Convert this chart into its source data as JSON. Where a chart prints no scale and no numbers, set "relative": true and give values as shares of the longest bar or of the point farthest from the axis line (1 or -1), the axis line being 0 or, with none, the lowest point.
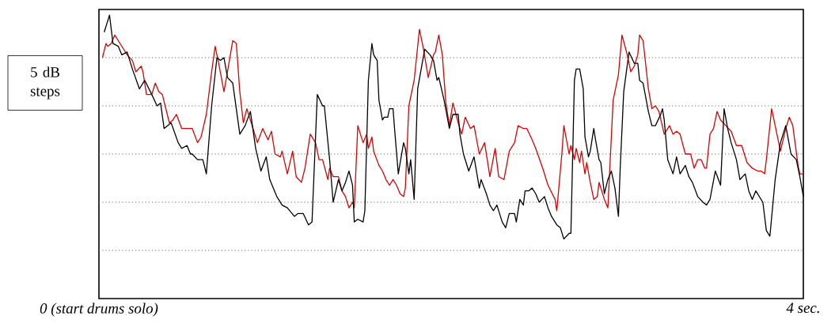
{
  "chart_data": {
    "type": "line",
    "relative": true,
    "ylabel": "5 dB steps",
    "xlim": [
      0,
      4
    ],
    "xticks": [
      {
        "value": 0,
        "label": "0 (start drums solo)"
      },
      {
        "value": 4,
        "label": "4 sec."
      }
    ],
    "ref_lines": [
      {
        "axis": "y",
        "value": 0.17,
        "color": "#666666",
        "line_style": "dotted"
      },
      {
        "axis": "y",
        "value": 0.34,
        "color": "#666666",
        "line_style": "dotted"
      },
      {
        "axis": "y",
        "value": 0.51,
        "color": "#666666",
        "line_style": "dotted"
      },
      {
        "axis": "y",
        "value": 0.68,
        "color": "#666666",
        "line_style": "dotted"
      },
      {
        "axis": "y",
        "value": 0.85,
        "color": "#666666",
        "line_style": "dotted"
      }
    ],
    "series": [
      {
        "color": "#dd0000",
        "x": [
          0.02,
          0.04,
          0.05,
          0.07,
          0.09,
          0.11,
          0.14,
          0.16,
          0.19,
          0.21,
          0.24,
          0.25,
          0.27,
          0.3,
          0.32,
          0.34,
          0.36,
          0.38,
          0.4,
          0.42,
          0.44,
          0.47,
          0.53,
          0.56,
          0.58,
          0.61,
          0.64,
          0.66,
          0.68,
          0.71,
          0.73,
          0.76,
          0.78,
          0.8,
          0.82,
          0.84,
          0.87,
          0.9,
          0.93,
          0.96,
          0.98,
          1.0,
          1.03,
          1.04,
          1.07,
          1.1,
          1.12,
          1.15,
          1.17,
          1.2,
          1.23,
          1.25,
          1.27,
          1.3,
          1.31,
          1.33,
          1.36,
          1.38,
          1.4,
          1.42,
          1.44,
          1.45,
          1.47,
          1.5,
          1.52,
          1.53,
          1.55,
          1.56,
          1.59,
          1.61,
          1.63,
          1.65,
          1.67,
          1.69,
          1.71,
          1.73,
          1.74,
          1.76,
          1.79,
          1.82,
          1.84,
          1.87,
          1.9,
          1.91,
          1.93,
          1.95,
          1.97,
          1.99,
          2.01,
          2.04,
          2.06,
          2.08,
          2.11,
          2.13,
          2.16,
          2.19,
          2.22,
          2.25,
          2.27,
          2.3,
          2.33,
          2.36,
          2.38,
          2.41,
          2.43,
          2.46,
          2.48,
          2.52,
          2.55,
          2.59,
          2.6,
          2.63,
          2.64,
          2.67,
          2.68,
          2.7,
          2.71,
          2.73,
          2.74,
          2.76,
          2.77,
          2.79,
          2.81,
          2.83,
          2.84,
          2.87,
          2.89,
          2.92,
          2.95,
          2.97,
          3.0,
          3.02,
          3.04,
          3.06,
          3.07,
          3.09,
          3.12,
          3.14,
          3.16,
          3.18,
          3.21,
          3.24,
          3.26,
          3.28,
          3.3,
          3.33,
          3.36,
          3.38,
          3.4,
          3.42,
          3.44,
          3.45,
          3.47,
          3.49,
          3.51,
          3.53,
          3.56,
          3.59,
          3.62,
          3.65,
          3.68,
          3.71,
          3.74,
          3.76,
          3.78,
          3.79,
          3.82,
          3.84,
          3.87,
          3.9,
          3.92,
          3.94,
          3.97,
          3.98,
          4.0
        ],
        "values": [
          0.85,
          0.9,
          0.89,
          0.9,
          0.93,
          0.91,
          0.88,
          0.86,
          0.84,
          0.8,
          0.82,
          0.8,
          0.72,
          0.72,
          0.76,
          0.73,
          0.72,
          0.67,
          0.62,
          0.63,
          0.65,
          0.6,
          0.6,
          0.55,
          0.57,
          0.65,
          0.8,
          0.89,
          0.83,
          0.73,
          0.8,
          0.91,
          0.9,
          0.73,
          0.62,
          0.67,
          0.61,
          0.55,
          0.6,
          0.56,
          0.59,
          0.51,
          0.5,
          0.52,
          0.44,
          0.52,
          0.43,
          0.41,
          0.46,
          0.58,
          0.55,
          0.49,
          0.49,
          0.42,
          0.46,
          0.43,
          0.43,
          0.38,
          0.36,
          0.32,
          0.34,
          0.32,
          0.61,
          0.55,
          0.58,
          0.53,
          0.57,
          0.52,
          0.47,
          0.45,
          0.42,
          0.4,
          0.42,
          0.4,
          0.37,
          0.36,
          0.39,
          0.68,
          0.77,
          0.95,
          0.89,
          0.78,
          0.86,
          0.87,
          0.93,
          0.86,
          0.69,
          0.61,
          0.69,
          0.62,
          0.58,
          0.64,
          0.6,
          0.61,
          0.51,
          0.55,
          0.43,
          0.53,
          0.43,
          0.42,
          0.52,
          0.55,
          0.61,
          0.6,
          0.6,
          0.56,
          0.53,
          0.46,
          0.4,
          0.35,
          0.31,
          0.52,
          0.61,
          0.51,
          0.54,
          0.49,
          0.53,
          0.48,
          0.52,
          0.44,
          0.48,
          0.41,
          0.35,
          0.36,
          0.41,
          0.35,
          0.32,
          0.7,
          0.79,
          0.93,
          0.86,
          0.8,
          0.82,
          0.86,
          0.93,
          0.91,
          0.74,
          0.67,
          0.68,
          0.66,
          0.58,
          0.61,
          0.58,
          0.59,
          0.58,
          0.51,
          0.51,
          0.46,
          0.49,
          0.49,
          0.46,
          0.46,
          0.58,
          0.6,
          0.66,
          0.63,
          0.61,
          0.59,
          0.54,
          0.54,
          0.48,
          0.46,
          0.45,
          0.45,
          0.44,
          0.49,
          0.67,
          0.61,
          0.52,
          0.6,
          0.64,
          0.61,
          0.47,
          0.44,
          0.44
        ]
      },
      {
        "color": "#000000",
        "x": [
          0.03,
          0.06,
          0.08,
          0.11,
          0.13,
          0.16,
          0.19,
          0.23,
          0.26,
          0.3,
          0.33,
          0.35,
          0.37,
          0.41,
          0.45,
          0.47,
          0.5,
          0.52,
          0.53,
          0.56,
          0.59,
          0.61,
          0.64,
          0.67,
          0.69,
          0.71,
          0.73,
          0.76,
          0.8,
          0.83,
          0.86,
          0.89,
          0.92,
          0.95,
          0.97,
          1.01,
          1.04,
          1.07,
          1.11,
          1.13,
          1.16,
          1.19,
          1.21,
          1.24,
          1.27,
          1.28,
          1.31,
          1.33,
          1.36,
          1.38,
          1.4,
          1.42,
          1.44,
          1.45,
          1.47,
          1.5,
          1.51,
          1.53,
          1.55,
          1.56,
          1.58,
          1.59,
          1.61,
          1.62,
          1.64,
          1.65,
          1.67,
          1.68,
          1.7,
          1.73,
          1.74,
          1.76,
          1.77,
          1.79,
          1.81,
          1.85,
          1.88,
          1.9,
          1.92,
          1.93,
          1.96,
          1.99,
          2.01,
          2.04,
          2.05,
          2.07,
          2.1,
          2.13,
          2.16,
          2.17,
          2.2,
          2.22,
          2.24,
          2.26,
          2.29,
          2.31,
          2.33,
          2.36,
          2.37,
          2.39,
          2.41,
          2.42,
          2.44,
          2.46,
          2.48,
          2.5,
          2.53,
          2.55,
          2.57,
          2.6,
          2.62,
          2.64,
          2.67,
          2.68,
          2.7,
          2.71,
          2.73,
          2.75,
          2.76,
          2.78,
          2.79,
          2.81,
          2.82,
          2.84,
          2.85,
          2.87,
          2.89,
          2.91,
          2.93,
          2.95,
          2.96,
          2.98,
          3.01,
          3.04,
          3.06,
          3.07,
          3.09,
          3.12,
          3.14,
          3.16,
          3.19,
          3.2,
          3.21,
          3.23,
          3.26,
          3.28,
          3.3,
          3.33,
          3.35,
          3.37,
          3.4,
          3.43,
          3.45,
          3.47,
          3.5,
          3.53,
          3.55,
          3.57,
          3.59,
          3.62,
          3.64,
          3.67,
          3.69,
          3.71,
          3.73,
          3.77,
          3.79,
          3.81,
          3.84,
          3.87,
          3.9,
          3.93,
          3.96,
          3.98,
          4.0
        ],
        "values": [
          0.94,
          1.0,
          0.9,
          0.89,
          0.86,
          0.87,
          0.81,
          0.74,
          0.77,
          0.72,
          0.68,
          0.69,
          0.6,
          0.62,
          0.55,
          0.53,
          0.54,
          0.51,
          0.51,
          0.49,
          0.49,
          0.44,
          0.68,
          0.85,
          0.84,
          0.85,
          0.78,
          0.76,
          0.58,
          0.61,
          0.66,
          0.53,
          0.45,
          0.5,
          0.42,
          0.36,
          0.33,
          0.32,
          0.29,
          0.3,
          0.3,
          0.26,
          0.27,
          0.72,
          0.68,
          0.68,
          0.49,
          0.34,
          0.42,
          0.38,
          0.41,
          0.45,
          0.4,
          0.27,
          0.28,
          0.27,
          0.31,
          0.77,
          0.9,
          0.86,
          0.84,
          0.7,
          0.63,
          0.64,
          0.64,
          0.67,
          0.67,
          0.59,
          0.44,
          0.55,
          0.53,
          0.44,
          0.49,
          0.35,
          0.74,
          0.88,
          0.86,
          0.84,
          0.77,
          0.78,
          0.7,
          0.6,
          0.65,
          0.65,
          0.58,
          0.51,
          0.45,
          0.5,
          0.39,
          0.42,
          0.37,
          0.33,
          0.31,
          0.33,
          0.27,
          0.25,
          0.3,
          0.3,
          0.27,
          0.35,
          0.33,
          0.38,
          0.38,
          0.39,
          0.37,
          0.34,
          0.36,
          0.32,
          0.29,
          0.26,
          0.25,
          0.21,
          0.23,
          0.23,
          0.77,
          0.81,
          0.81,
          0.74,
          0.57,
          0.5,
          0.52,
          0.6,
          0.56,
          0.49,
          0.48,
          0.37,
          0.42,
          0.45,
          0.39,
          0.29,
          0.46,
          0.73,
          0.87,
          0.83,
          0.83,
          0.77,
          0.76,
          0.66,
          0.61,
          0.61,
          0.65,
          0.67,
          0.63,
          0.49,
          0.44,
          0.5,
          0.44,
          0.47,
          0.43,
          0.41,
          0.36,
          0.34,
          0.33,
          0.35,
          0.45,
          0.4,
          0.67,
          0.6,
          0.55,
          0.49,
          0.42,
          0.44,
          0.38,
          0.35,
          0.38,
          0.34,
          0.24,
          0.22,
          0.42,
          0.55,
          0.61,
          0.51,
          0.49,
          0.43,
          0.36
        ]
      }
    ]
  }
}
